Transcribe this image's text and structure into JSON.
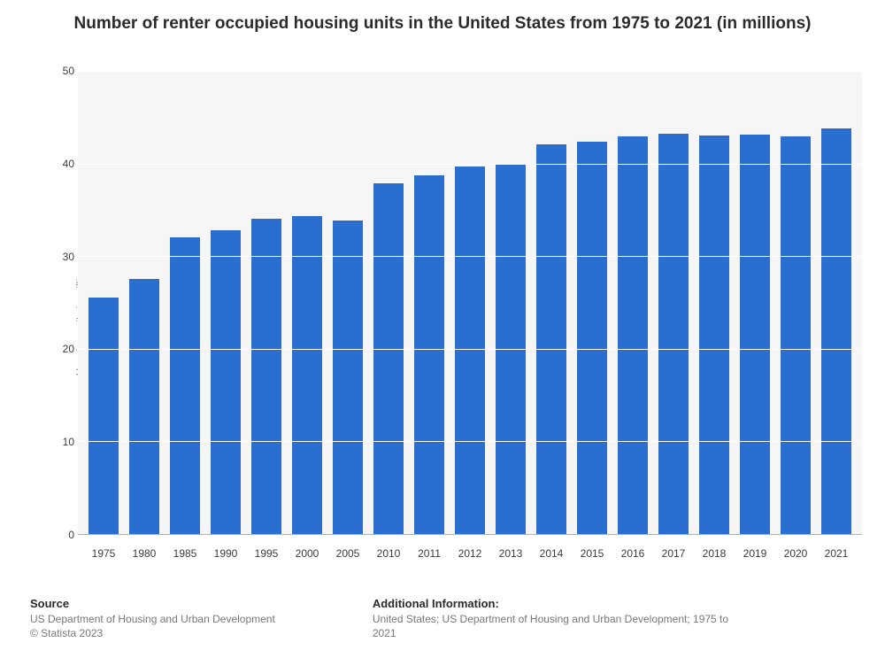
{
  "title": "Number of renter occupied housing units in the United States from 1975 to 2021 (in millions)",
  "title_fontsize": 19,
  "chart": {
    "type": "bar",
    "categories": [
      "1975",
      "1980",
      "1985",
      "1990",
      "1995",
      "2000",
      "2005",
      "2010",
      "2011",
      "2012",
      "2013",
      "2014",
      "2015",
      "2016",
      "2017",
      "2018",
      "2019",
      "2020",
      "2021"
    ],
    "values": [
      25.5,
      27.5,
      32.0,
      32.8,
      34.0,
      34.3,
      33.8,
      37.9,
      38.7,
      39.7,
      39.9,
      42.1,
      42.4,
      42.9,
      43.2,
      43.0,
      43.1,
      42.9,
      43.8
    ],
    "bar_color": "#2a6ecf",
    "bar_width": 0.72,
    "ylabel": "Housing units in millions",
    "ylabel_color": "#8a8e96",
    "label_fontsize": 12,
    "ylim": [
      0,
      50
    ],
    "ytick_step": 10,
    "background_color": "#f6f6f7",
    "grid_color": "#ffffff",
    "axis_color": "#aeb3b8",
    "tick_color": "#3a3c40",
    "tick_fontsize": 12
  },
  "footer": {
    "source_heading": "Source",
    "source_text": "US Department of Housing and Urban Development",
    "copyright": "© Statista 2023",
    "addl_heading": "Additional Information:",
    "addl_text": "United States; US Department of Housing and Urban Development; 1975 to 2021",
    "heading_fontsize": 13,
    "text_fontsize": 12,
    "text_color": "#74777c"
  }
}
